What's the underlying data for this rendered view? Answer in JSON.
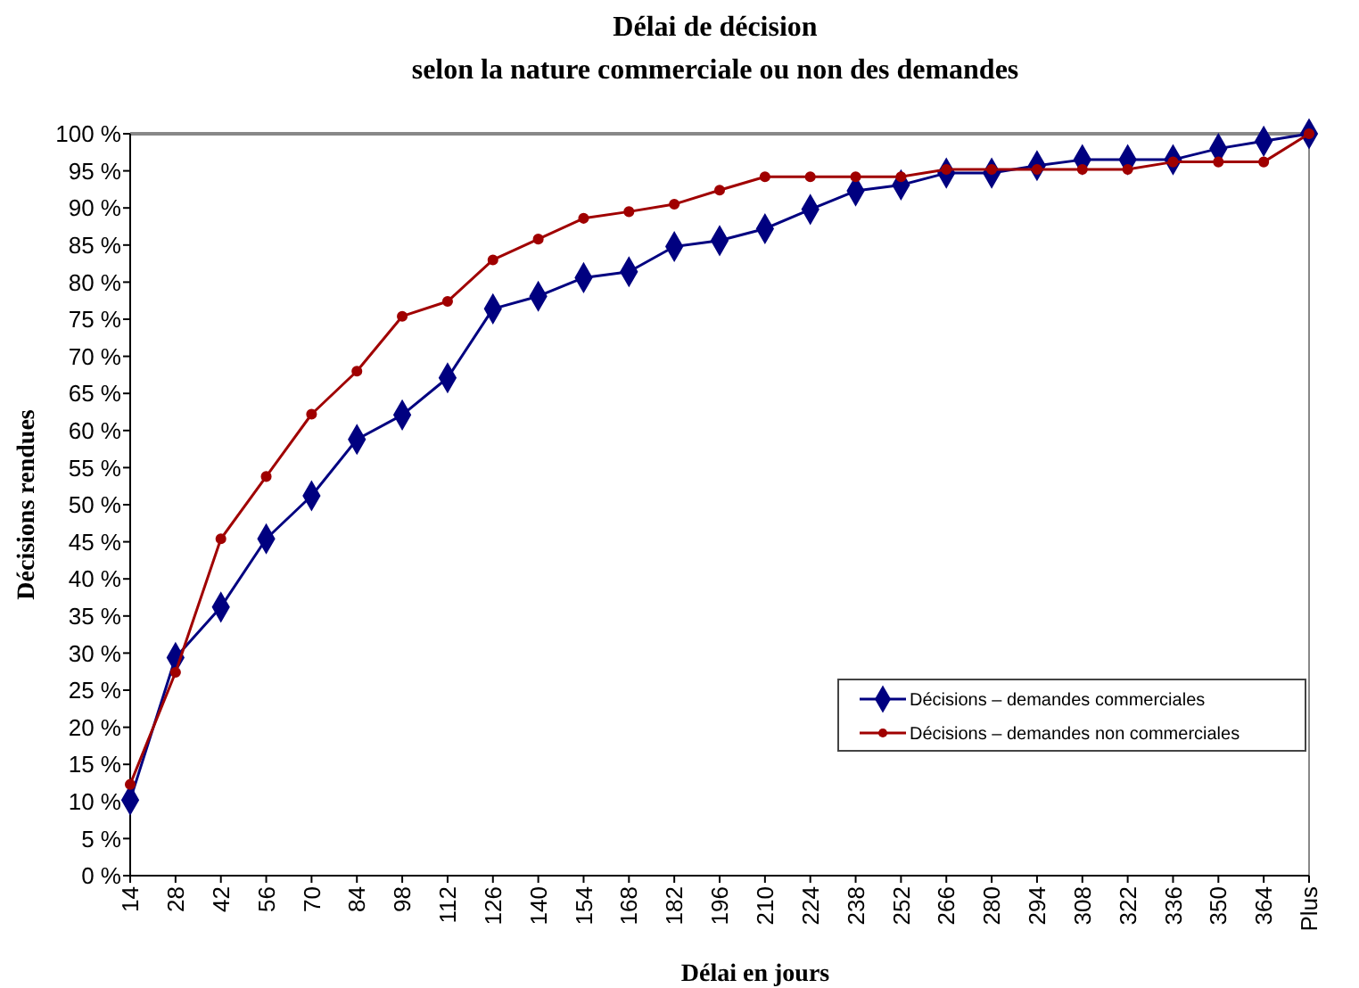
{
  "chart_data": {
    "type": "line",
    "title": "Délai de décision",
    "subtitle": "selon la nature commerciale ou non des demandes",
    "xlabel": "Délai en jours",
    "ylabel": "Décisions rendues",
    "categories": [
      "14",
      "28",
      "42",
      "56",
      "70",
      "84",
      "98",
      "112",
      "126",
      "140",
      "154",
      "168",
      "182",
      "196",
      "210",
      "224",
      "238",
      "252",
      "266",
      "280",
      "294",
      "308",
      "322",
      "336",
      "350",
      "364",
      "Plus"
    ],
    "series": [
      {
        "name": "Décisions – demandes commerciales",
        "color": "#000080",
        "marker": "diamond",
        "values": [
          10.2,
          29.4,
          36.2,
          45.4,
          51.2,
          58.8,
          62.1,
          67.1,
          76.4,
          78.1,
          80.6,
          81.4,
          84.8,
          85.6,
          87.2,
          89.8,
          92.3,
          93.1,
          94.7,
          94.7,
          95.7,
          96.5,
          96.5,
          96.5,
          98.0,
          99.0,
          100
        ]
      },
      {
        "name": "Décisions – demandes non commerciales",
        "color": "#a00000",
        "marker": "circle",
        "values": [
          12.3,
          27.4,
          45.4,
          53.8,
          62.2,
          68.0,
          75.4,
          77.4,
          83.0,
          85.8,
          88.6,
          89.5,
          90.5,
          92.4,
          94.2,
          94.2,
          94.2,
          94.2,
          95.2,
          95.2,
          95.2,
          95.2,
          95.2,
          96.2,
          96.2,
          96.2,
          100
        ]
      }
    ],
    "ylim": [
      0,
      100
    ],
    "yticks": [
      {
        "value": 0,
        "label": "0 %"
      },
      {
        "value": 5,
        "label": "5 %"
      },
      {
        "value": 10,
        "label": "10 %"
      },
      {
        "value": 15,
        "label": "15 %"
      },
      {
        "value": 20,
        "label": "20 %"
      },
      {
        "value": 25,
        "label": "25 %"
      },
      {
        "value": 30,
        "label": "30 %"
      },
      {
        "value": 35,
        "label": "35 %"
      },
      {
        "value": 40,
        "label": "40 %"
      },
      {
        "value": 45,
        "label": "45 %"
      },
      {
        "value": 50,
        "label": "50 %"
      },
      {
        "value": 55,
        "label": "55 %"
      },
      {
        "value": 60,
        "label": "60 %"
      },
      {
        "value": 65,
        "label": "65 %"
      },
      {
        "value": 70,
        "label": "70 %"
      },
      {
        "value": 75,
        "label": "75 %"
      },
      {
        "value": 80,
        "label": "80 %"
      },
      {
        "value": 85,
        "label": "85 %"
      },
      {
        "value": 90,
        "label": "90 %"
      },
      {
        "value": 95,
        "label": "95 %"
      },
      {
        "value": 100,
        "label": "100 %"
      }
    ],
    "grid": false,
    "legend": "bottom right",
    "line_style": "solid"
  }
}
